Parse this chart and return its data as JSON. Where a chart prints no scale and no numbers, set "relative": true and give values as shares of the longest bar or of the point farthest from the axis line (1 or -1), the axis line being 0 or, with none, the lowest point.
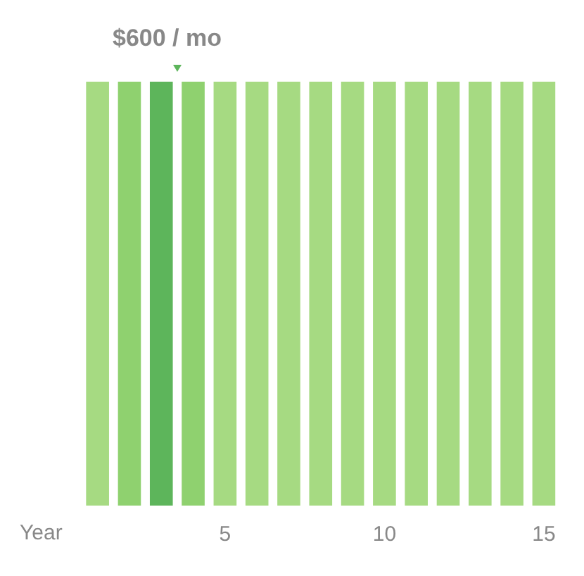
{
  "chart_data": {
    "type": "bar",
    "relative": true,
    "xlabel": "Year",
    "annotations": [
      "$600 / mo"
    ],
    "categories": [
      null,
      null,
      null,
      null,
      "5",
      null,
      null,
      null,
      null,
      "10",
      null,
      null,
      null,
      null,
      "15"
    ],
    "values": [
      1,
      1,
      1,
      1,
      1,
      1,
      1,
      1,
      1,
      1,
      1,
      1,
      1,
      1,
      1
    ],
    "colors": [
      "#a6da82",
      "#8fd16f",
      "#5db55b",
      "#8fd16f",
      "#a6da82",
      "#a6da82",
      "#a6da82",
      "#a6da82",
      "#a6da82",
      "#a6da82",
      "#a6da82",
      "#a6da82",
      "#a6da82",
      "#a6da82",
      "#a6da82"
    ],
    "grid": false,
    "legend": false
  }
}
